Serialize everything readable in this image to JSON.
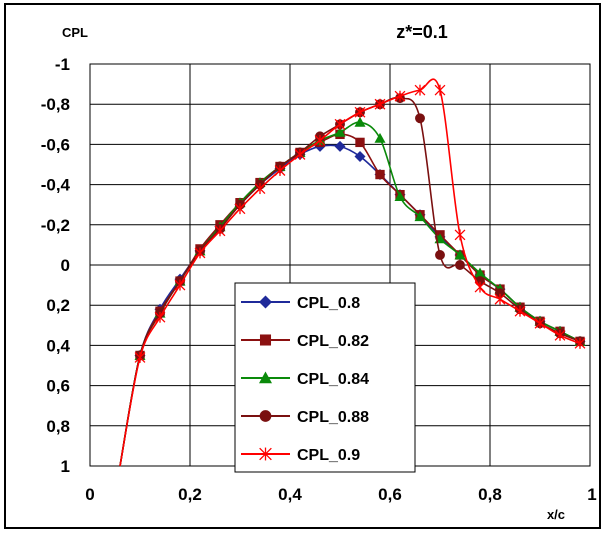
{
  "chart_data": {
    "type": "line",
    "title": "z*=0.1",
    "ylabel": "CPL",
    "xlabel": "x/c",
    "xlim": [
      0,
      1
    ],
    "ylim": [
      1,
      -1
    ],
    "y_axis_inverted": true,
    "x_ticks": [
      0,
      0.2,
      0.4,
      0.6,
      0.8,
      1
    ],
    "x_tick_labels": [
      "0",
      "0,2",
      "0,4",
      "0,6",
      "0,8",
      "1"
    ],
    "y_ticks": [
      -1,
      -0.8,
      -0.6,
      -0.4,
      -0.2,
      0,
      0.2,
      0.4,
      0.6,
      0.8,
      1
    ],
    "y_tick_labels": [
      "-1",
      "-0,8",
      "-0,6",
      "-0,4",
      "-0,2",
      "0",
      "0,2",
      "0,4",
      "0,6",
      "0,8",
      "1"
    ],
    "grid": true,
    "legend_position": "center-bottom",
    "series": [
      {
        "name": "CPL_0.8",
        "color": "#1f2a9a",
        "marker": "diamond",
        "x": [
          0.06,
          0.1,
          0.14,
          0.18,
          0.22,
          0.26,
          0.3,
          0.34,
          0.38,
          0.42,
          0.46,
          0.5,
          0.54,
          0.58,
          0.62,
          0.66,
          0.7,
          0.74,
          0.78,
          0.82,
          0.86,
          0.9,
          0.94,
          0.98
        ],
        "y": [
          1.0,
          0.45,
          0.22,
          0.07,
          -0.07,
          -0.19,
          -0.3,
          -0.4,
          -0.48,
          -0.55,
          -0.59,
          -0.59,
          -0.54,
          -0.45,
          -0.35,
          -0.25,
          -0.14,
          -0.05,
          0.05,
          0.12,
          0.21,
          0.28,
          0.33,
          0.38
        ]
      },
      {
        "name": "CPL_0.82",
        "color": "#8b1010",
        "marker": "square",
        "x": [
          0.06,
          0.1,
          0.14,
          0.18,
          0.22,
          0.26,
          0.3,
          0.34,
          0.38,
          0.42,
          0.46,
          0.5,
          0.54,
          0.58,
          0.62,
          0.66,
          0.7,
          0.74,
          0.78,
          0.82,
          0.86,
          0.9,
          0.94,
          0.98
        ],
        "y": [
          1.0,
          0.45,
          0.23,
          0.08,
          -0.08,
          -0.2,
          -0.31,
          -0.41,
          -0.49,
          -0.56,
          -0.61,
          -0.65,
          -0.61,
          -0.45,
          -0.35,
          -0.25,
          -0.15,
          -0.05,
          0.05,
          0.12,
          0.21,
          0.28,
          0.33,
          0.38
        ]
      },
      {
        "name": "CPL_0.84",
        "color": "#0a8a0a",
        "marker": "triangle",
        "x": [
          0.06,
          0.1,
          0.14,
          0.18,
          0.22,
          0.26,
          0.3,
          0.34,
          0.38,
          0.42,
          0.46,
          0.5,
          0.54,
          0.58,
          0.62,
          0.66,
          0.7,
          0.74,
          0.78,
          0.82,
          0.86,
          0.9,
          0.94,
          0.98
        ],
        "y": [
          1.0,
          0.45,
          0.24,
          0.08,
          -0.07,
          -0.19,
          -0.31,
          -0.41,
          -0.49,
          -0.56,
          -0.62,
          -0.66,
          -0.71,
          -0.63,
          -0.34,
          -0.24,
          -0.13,
          -0.05,
          0.04,
          0.12,
          0.21,
          0.28,
          0.33,
          0.38
        ]
      },
      {
        "name": "CPL_0.88",
        "color": "#7a1010",
        "marker": "circle",
        "x": [
          0.06,
          0.1,
          0.14,
          0.18,
          0.22,
          0.26,
          0.3,
          0.34,
          0.38,
          0.42,
          0.46,
          0.5,
          0.54,
          0.58,
          0.62,
          0.66,
          0.7,
          0.74,
          0.78,
          0.82,
          0.86,
          0.9,
          0.94,
          0.98
        ],
        "y": [
          1.0,
          0.45,
          0.24,
          0.08,
          -0.07,
          -0.18,
          -0.3,
          -0.4,
          -0.49,
          -0.56,
          -0.64,
          -0.7,
          -0.76,
          -0.8,
          -0.83,
          -0.73,
          -0.05,
          0.0,
          0.08,
          0.14,
          0.22,
          0.29,
          0.34,
          0.38
        ]
      },
      {
        "name": "CPL_0.9",
        "color": "#ff0000",
        "marker": "star",
        "x": [
          0.06,
          0.1,
          0.14,
          0.18,
          0.22,
          0.26,
          0.3,
          0.34,
          0.38,
          0.42,
          0.46,
          0.5,
          0.54,
          0.58,
          0.62,
          0.66,
          0.7,
          0.74,
          0.78,
          0.82,
          0.86,
          0.9,
          0.94,
          0.98
        ],
        "y": [
          1.0,
          0.46,
          0.26,
          0.1,
          -0.06,
          -0.17,
          -0.28,
          -0.38,
          -0.47,
          -0.55,
          -0.62,
          -0.7,
          -0.76,
          -0.8,
          -0.84,
          -0.87,
          -0.87,
          -0.15,
          0.11,
          0.17,
          0.23,
          0.29,
          0.35,
          0.39
        ]
      }
    ]
  }
}
